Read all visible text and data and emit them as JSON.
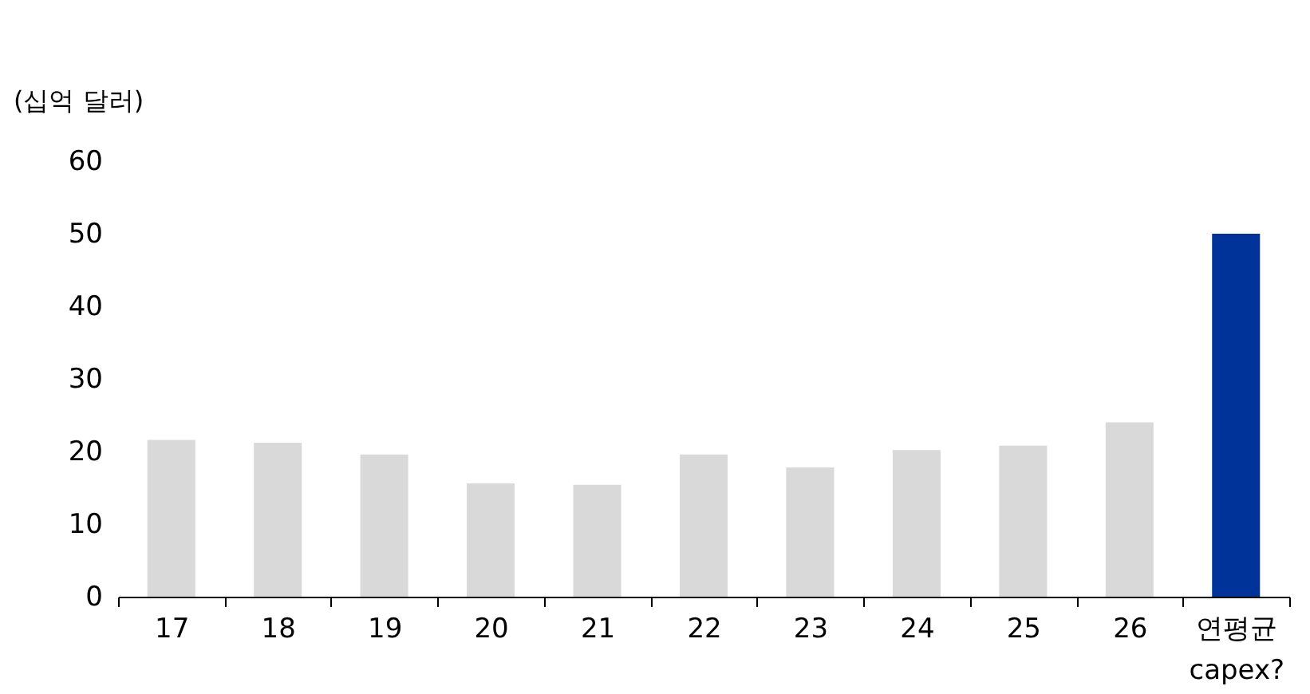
{
  "chart_data": {
    "type": "bar",
    "ylabel": "(십억 달러)",
    "categories": [
      "17",
      "18",
      "19",
      "20",
      "21",
      "22",
      "23",
      "24",
      "25",
      "26",
      "연평균 capex?"
    ],
    "values": [
      21.6,
      21.2,
      19.6,
      15.6,
      15.4,
      19.6,
      17.8,
      20.2,
      20.8,
      24,
      50
    ],
    "colors": [
      "#d9d9d9",
      "#d9d9d9",
      "#d9d9d9",
      "#d9d9d9",
      "#d9d9d9",
      "#d9d9d9",
      "#d9d9d9",
      "#d9d9d9",
      "#d9d9d9",
      "#d9d9d9",
      "#003399"
    ],
    "ylim": [
      0,
      60
    ],
    "yticks": [
      0,
      10,
      20,
      30,
      40,
      50,
      60
    ],
    "grid": false
  }
}
